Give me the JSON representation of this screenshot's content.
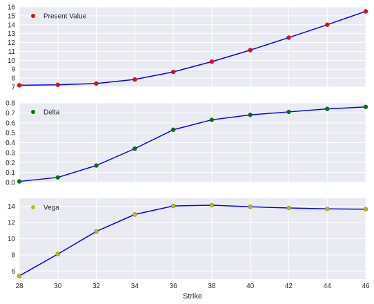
{
  "chart_data": [
    {
      "type": "line",
      "x": [
        28,
        30,
        32,
        34,
        36,
        38,
        40,
        42,
        44,
        46
      ],
      "series": [
        {
          "name": "Present Value",
          "values": [
            7.2,
            7.25,
            7.4,
            7.85,
            8.7,
            9.85,
            11.15,
            12.55,
            14.0,
            15.5
          ],
          "marker_color": "#ff0000",
          "line_color": "#0000ff"
        }
      ],
      "xlim": [
        28,
        46
      ],
      "ylim": [
        7,
        16
      ],
      "yticks": [
        "16",
        "15",
        "14",
        "13",
        "12",
        "11",
        "10",
        "9",
        "8",
        "7"
      ],
      "xticks_visible": false,
      "legend_loc": "upper left",
      "grid": true
    },
    {
      "type": "line",
      "x": [
        28,
        30,
        32,
        34,
        36,
        38,
        40,
        42,
        44,
        46
      ],
      "series": [
        {
          "name": "Delta",
          "values": [
            0.01,
            0.05,
            0.17,
            0.34,
            0.53,
            0.63,
            0.68,
            0.71,
            0.74,
            0.76
          ],
          "marker_color": "#007700",
          "line_color": "#0000ff"
        }
      ],
      "xlim": [
        28,
        46
      ],
      "ylim": [
        0.0,
        0.8
      ],
      "yticks": [
        "0.8",
        "0.7",
        "0.6",
        "0.5",
        "0.4",
        "0.3",
        "0.2",
        "0.1",
        "0.0"
      ],
      "xticks_visible": false,
      "legend_loc": "upper left",
      "grid": true
    },
    {
      "type": "line",
      "x": [
        28,
        30,
        32,
        34,
        36,
        38,
        40,
        42,
        44,
        46
      ],
      "series": [
        {
          "name": "Vega",
          "values": [
            5.4,
            8.1,
            10.9,
            13.0,
            14.05,
            14.15,
            13.95,
            13.8,
            13.7,
            13.65
          ],
          "marker_color": "#bfbf00",
          "line_color": "#0000ff"
        }
      ],
      "xlim": [
        28,
        46
      ],
      "ylim": [
        5,
        15
      ],
      "yticks": [
        "14",
        "12",
        "10",
        "8",
        "6"
      ],
      "xticks": [
        "28",
        "30",
        "32",
        "34",
        "36",
        "38",
        "40",
        "42",
        "44",
        "46"
      ],
      "xticks_visible": true,
      "xlabel": "Strike",
      "legend_loc": "upper left",
      "grid": true
    }
  ],
  "style": {
    "axes_background": "#eaeaf2",
    "grid_color": "#ffffff",
    "text_color": "#262626"
  }
}
